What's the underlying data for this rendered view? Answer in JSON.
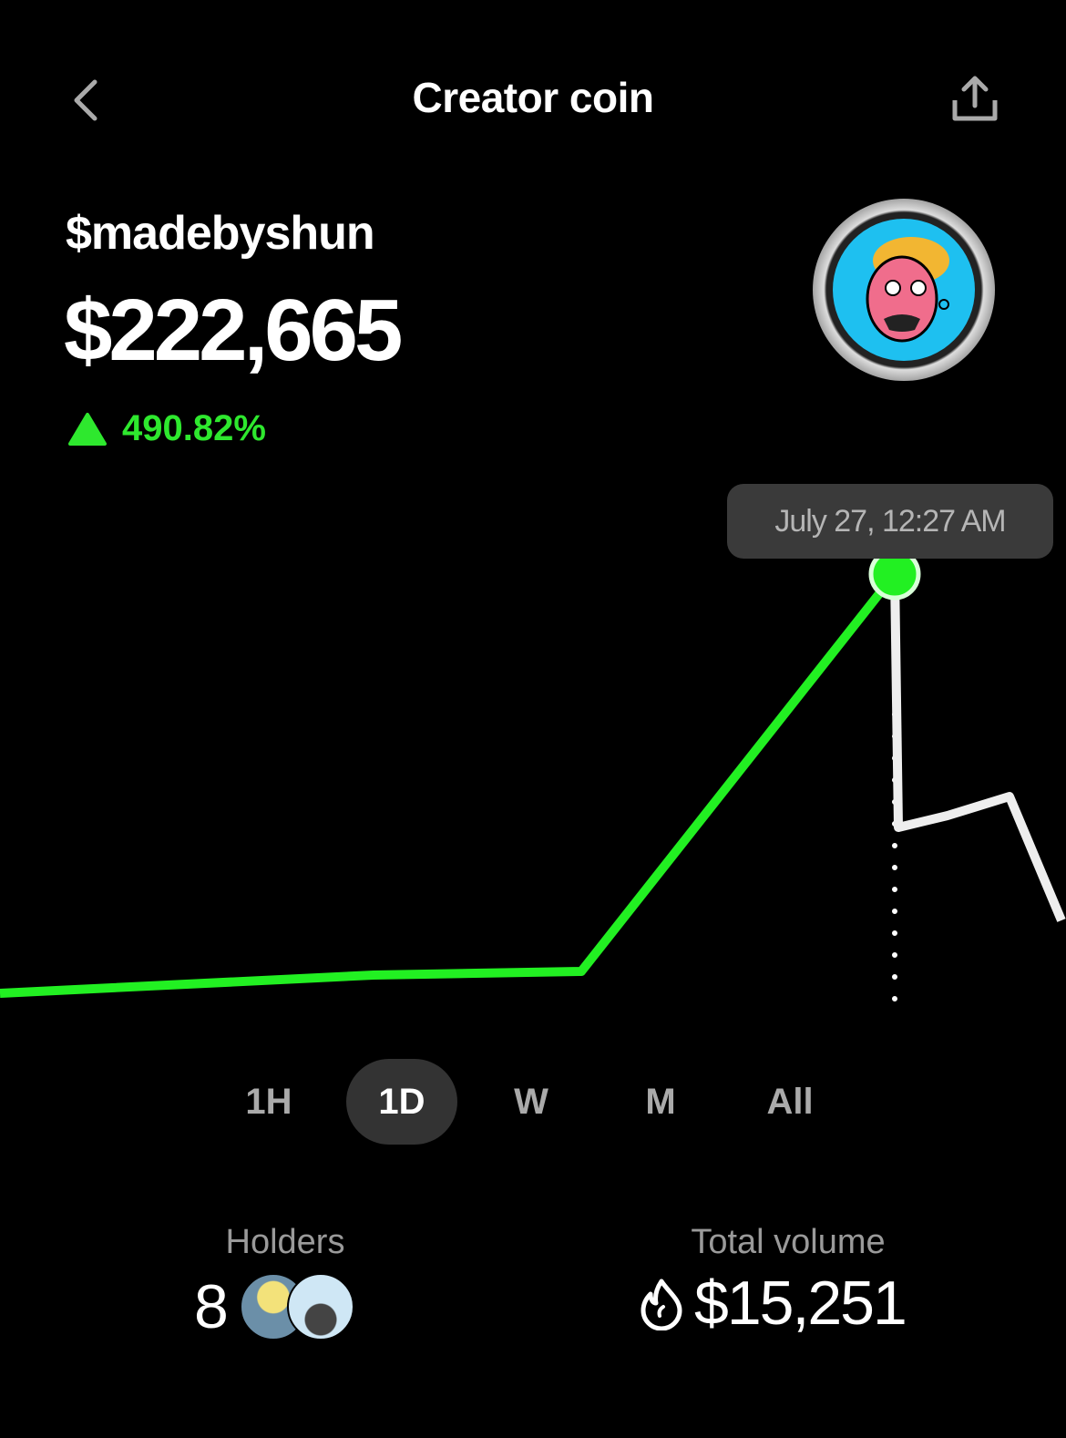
{
  "header": {
    "title": "Creator coin",
    "back_icon": "chevron-left-icon",
    "share_icon": "share-icon"
  },
  "coin": {
    "ticker": "$madebyshun",
    "price": "$222,665",
    "change": "490.82%",
    "change_direction": "up",
    "accent_color": "#2ee82e"
  },
  "chart": {
    "tooltip": "July 27, 12:27 AM",
    "line_color_active": "#22f022",
    "line_color_rest": "#eeeeee"
  },
  "ranges": {
    "items": [
      "1H",
      "1D",
      "W",
      "M",
      "All"
    ],
    "selected": "1D"
  },
  "stats": {
    "holders": {
      "label": "Holders",
      "value": "8"
    },
    "volume": {
      "label": "Total volume",
      "value": "$15,251",
      "icon": "flame-icon"
    }
  }
}
